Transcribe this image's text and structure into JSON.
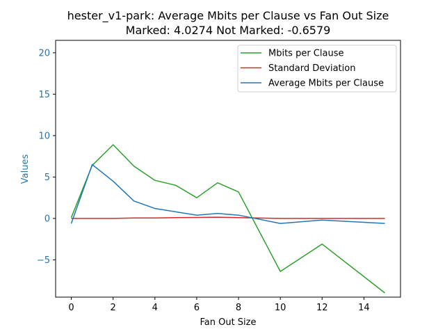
{
  "chart_data": {
    "type": "line",
    "title": "hester_v1-park: Average Mbits per Clause vs Fan Out Size",
    "subtitle": "Marked: 4.0274 Not Marked: -0.6579",
    "xlabel": "Fan Out Size",
    "ylabel": "Values",
    "xlim": [
      -0.75,
      15.75
    ],
    "ylim": [
      -9.5,
      21.5
    ],
    "xticks": [
      0,
      2,
      4,
      6,
      8,
      10,
      12,
      14
    ],
    "yticks": [
      -5,
      0,
      5,
      10,
      15,
      20
    ],
    "ytick_labels": [
      "−5",
      "0",
      "5",
      "10",
      "15",
      "20"
    ],
    "grid": false,
    "legend_position": "top-right",
    "series": [
      {
        "name": "Mbits per Clause",
        "color": "#2ca02c",
        "x": [
          0,
          1,
          2,
          3,
          4,
          5,
          6,
          7,
          8,
          10,
          12,
          15
        ],
        "y": [
          0.1,
          6.4,
          8.9,
          6.3,
          4.6,
          4.0,
          2.5,
          4.3,
          3.2,
          -6.4,
          -3.1,
          -9.0
        ]
      },
      {
        "name": "Standard Deviation",
        "color": "#d62728",
        "x": [
          0,
          1,
          2,
          3,
          4,
          5,
          6,
          7,
          8,
          10,
          12,
          15
        ],
        "y": [
          0.0,
          0.0,
          0.0,
          0.05,
          0.05,
          0.1,
          0.12,
          0.15,
          0.1,
          0.0,
          0.0,
          0.0
        ]
      },
      {
        "name": "Average Mbits per Clause",
        "color": "#1f77b4",
        "x": [
          0,
          1,
          2,
          3,
          4,
          5,
          6,
          7,
          8,
          10,
          12,
          15
        ],
        "y": [
          -0.6,
          6.5,
          4.5,
          2.1,
          1.2,
          0.8,
          0.4,
          0.6,
          0.4,
          -0.6,
          -0.2,
          -0.6
        ]
      }
    ]
  },
  "colors": {
    "ylabel_color": "#1f77b4",
    "axis_color": "#000000"
  }
}
